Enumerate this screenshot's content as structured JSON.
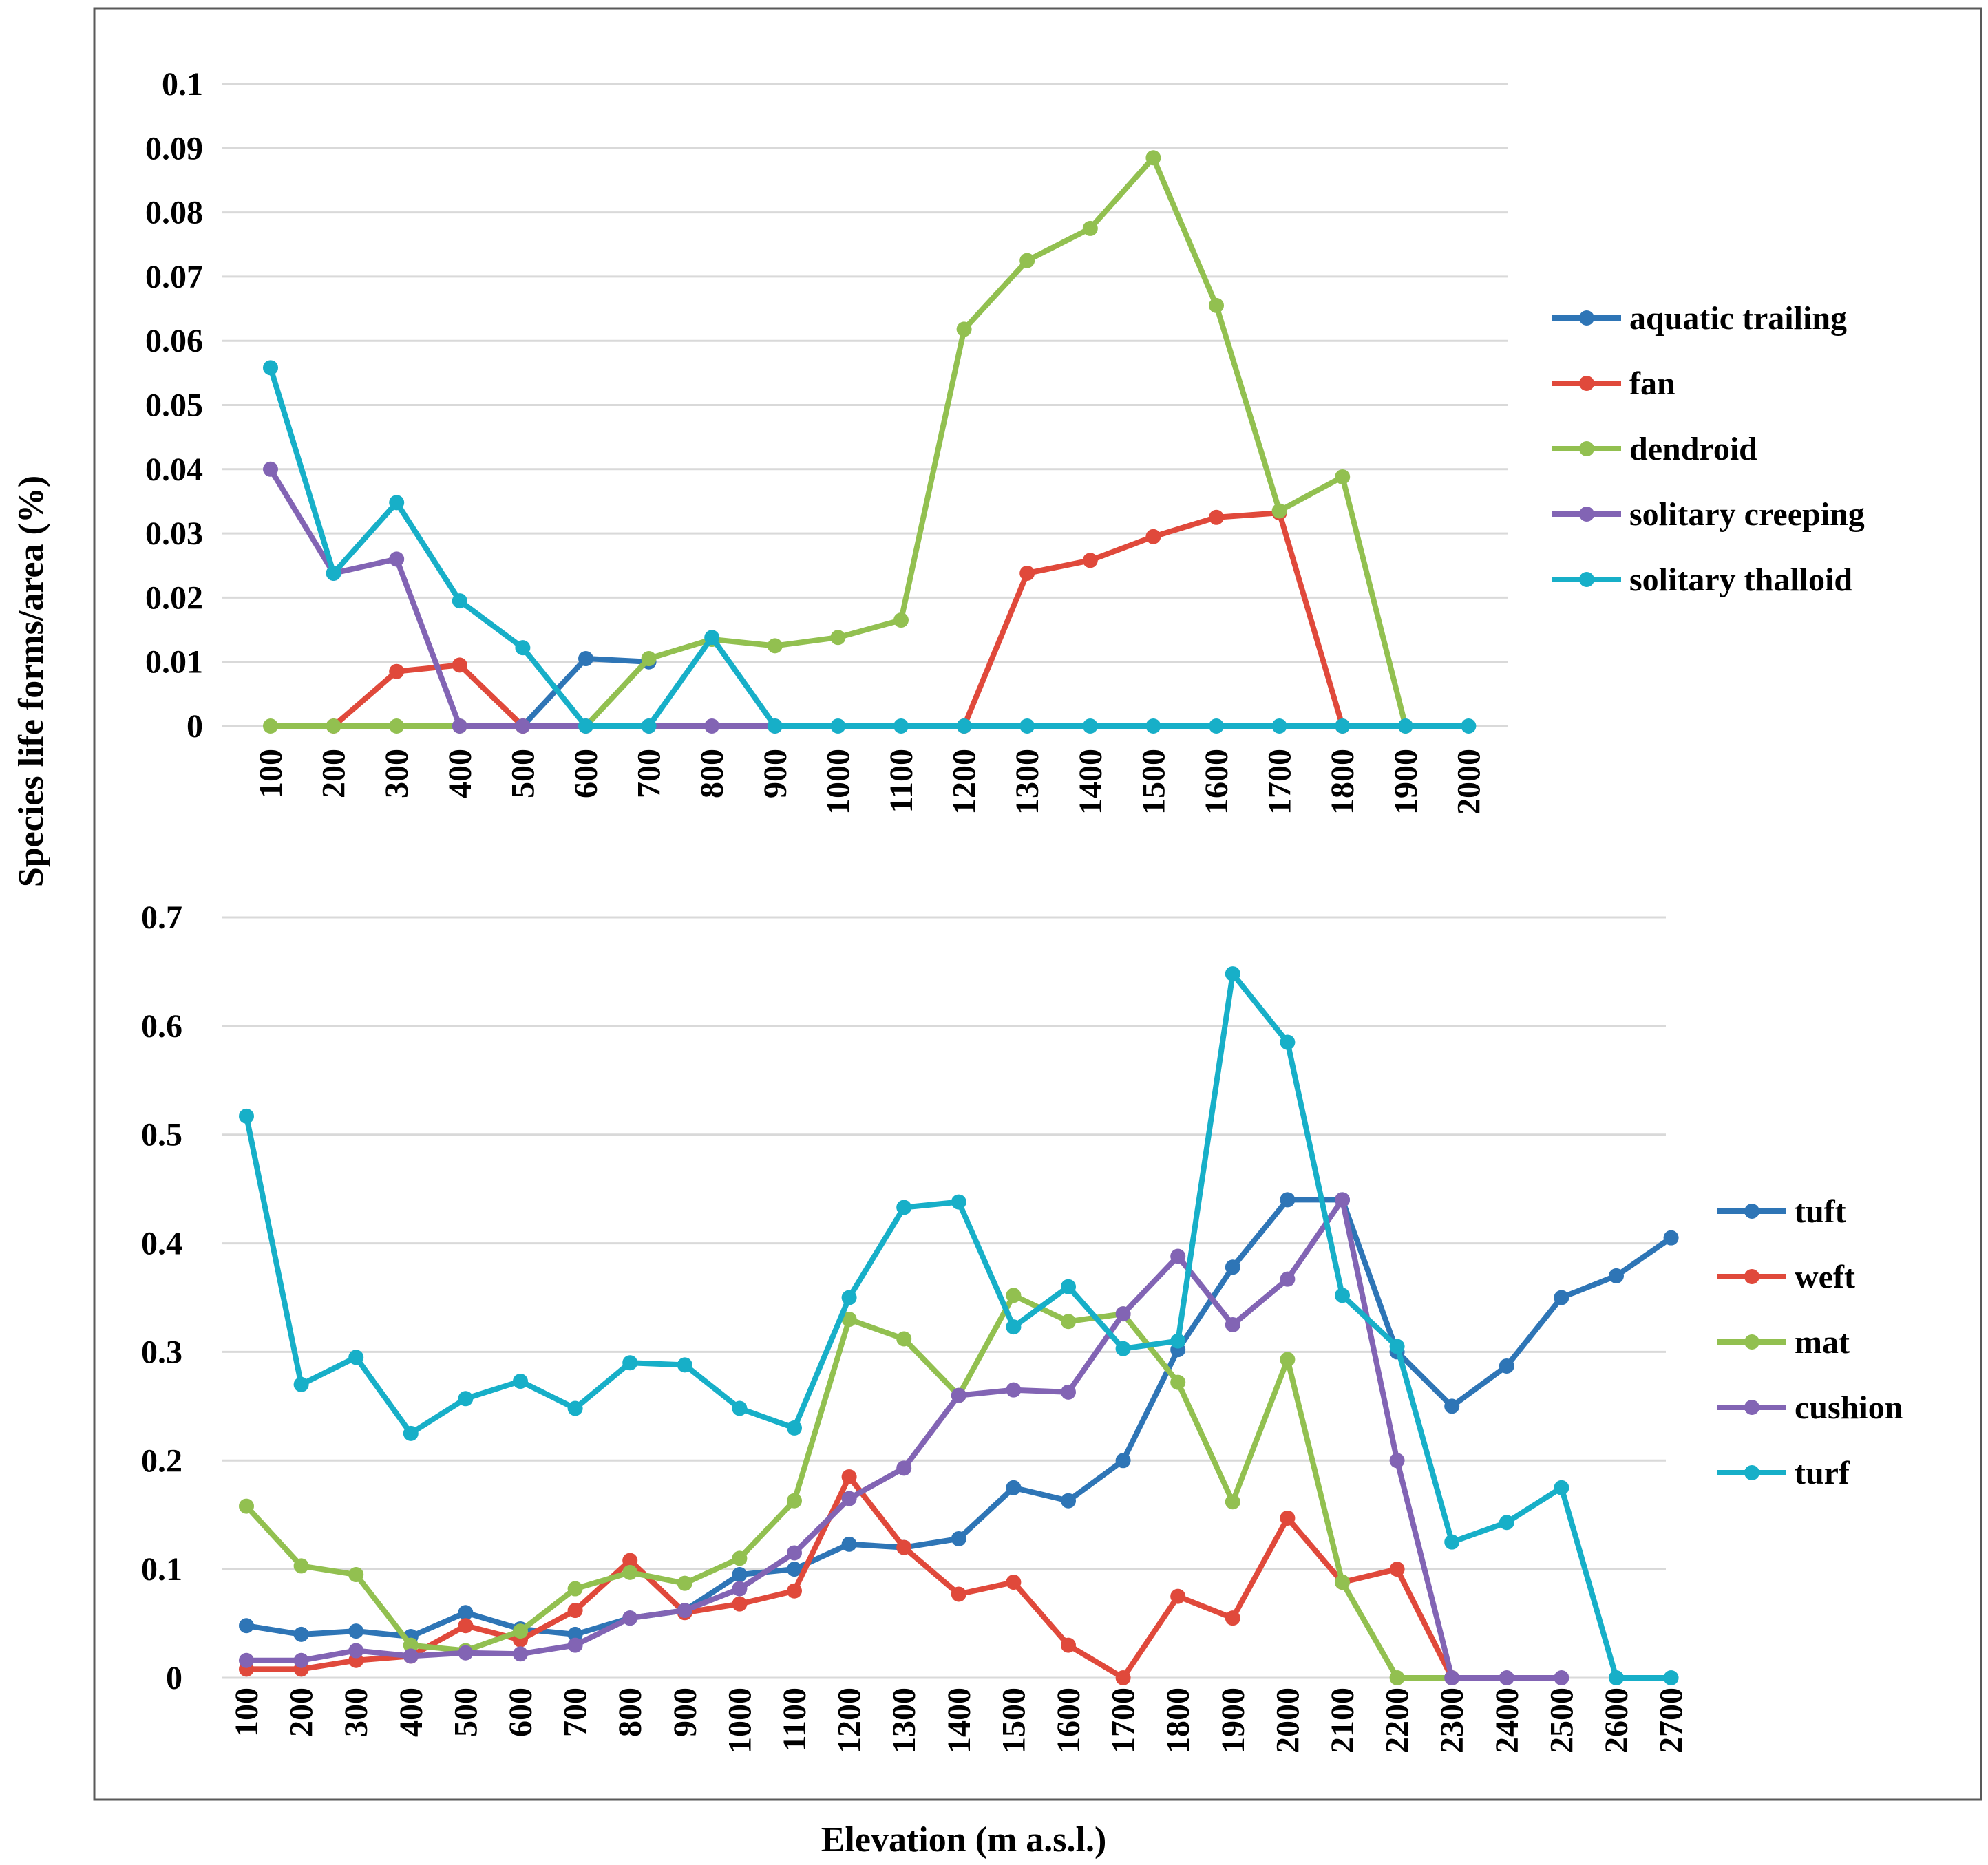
{
  "figure": {
    "ylabel": "Species life forms/area  (%)",
    "xlabel": "Elevation  (m a.s.l.)"
  },
  "chart_data": [
    {
      "type": "line",
      "categories": [
        "100",
        "200",
        "300",
        "400",
        "500",
        "600",
        "700",
        "800",
        "900",
        "1000",
        "1100",
        "1200",
        "1300",
        "1400",
        "1500",
        "1600",
        "1700",
        "1800",
        "1900",
        "2000"
      ],
      "ylim": [
        0,
        0.1
      ],
      "yticks": [
        "0",
        "0.01",
        "0.02",
        "0.03",
        "0.04",
        "0.05",
        "0.06",
        "0.07",
        "0.08",
        "0.09",
        "0.1"
      ],
      "grid": true,
      "legend_position": "right",
      "series": [
        {
          "name": "aquatic trailing",
          "color": "#2E75B6",
          "values": [
            null,
            null,
            null,
            null,
            0,
            0.0105,
            0.01,
            null,
            null,
            null,
            null,
            null,
            null,
            null,
            null,
            null,
            null,
            null,
            null,
            null
          ]
        },
        {
          "name": "fan",
          "color": "#E0493B",
          "values": [
            null,
            0,
            0.0085,
            0.0095,
            0,
            null,
            null,
            null,
            null,
            null,
            null,
            0,
            0.0238,
            0.0258,
            0.0295,
            0.0325,
            0.0332,
            0,
            null,
            null
          ]
        },
        {
          "name": "dendroid",
          "color": "#92C050",
          "values": [
            0,
            0,
            0,
            0,
            null,
            0,
            0.0105,
            0.0135,
            0.0125,
            0.0138,
            0.0165,
            0.0618,
            0.0725,
            0.0775,
            0.0885,
            0.0655,
            0.0335,
            0.0388,
            0,
            null
          ]
        },
        {
          "name": "solitary creeping",
          "color": "#8264B4",
          "values": [
            0.04,
            0.0238,
            0.026,
            0,
            0,
            0,
            0,
            0,
            0,
            null,
            null,
            null,
            null,
            null,
            null,
            null,
            null,
            null,
            null,
            null
          ]
        },
        {
          "name": "solitary thalloid",
          "color": "#17AFC8",
          "values": [
            0.0558,
            0.0238,
            0.0348,
            0.0195,
            0.0122,
            0,
            0,
            0.0138,
            0,
            0,
            0,
            0,
            0,
            0,
            0,
            0,
            0,
            0,
            0,
            0
          ]
        }
      ]
    },
    {
      "type": "line",
      "categories": [
        "100",
        "200",
        "300",
        "400",
        "500",
        "600",
        "700",
        "800",
        "900",
        "1000",
        "1100",
        "1200",
        "1300",
        "1400",
        "1500",
        "1600",
        "1700",
        "1800",
        "1900",
        "2000",
        "2100",
        "2200",
        "2300",
        "2400",
        "2500",
        "2600",
        "2700"
      ],
      "ylim": [
        0,
        0.7
      ],
      "yticks": [
        "0",
        "0.1",
        "0.2",
        "0.3",
        "0.4",
        "0.5",
        "0.6",
        "0.7"
      ],
      "grid": true,
      "legend_position": "right",
      "series": [
        {
          "name": "tuft",
          "color": "#2E75B6",
          "values": [
            0.048,
            0.04,
            0.043,
            0.038,
            0.06,
            0.045,
            0.04,
            0.055,
            0.062,
            0.095,
            0.1,
            0.123,
            0.12,
            0.128,
            0.175,
            0.163,
            0.2,
            0.302,
            0.378,
            0.44,
            0.44,
            0.3,
            0.25,
            0.287,
            0.35,
            0.37,
            0.405
          ]
        },
        {
          "name": "weft",
          "color": "#E0493B",
          "values": [
            0.008,
            0.008,
            0.016,
            0.02,
            0.048,
            0.035,
            0.062,
            0.108,
            0.06,
            0.068,
            0.08,
            0.185,
            0.12,
            0.077,
            0.088,
            0.03,
            0,
            0.075,
            0.055,
            0.147,
            0.088,
            0.1,
            0,
            null,
            null,
            null,
            null
          ]
        },
        {
          "name": "mat",
          "color": "#92C050",
          "values": [
            0.158,
            0.103,
            0.095,
            0.03,
            0.025,
            0.043,
            0.082,
            0.097,
            0.087,
            0.11,
            0.163,
            0.33,
            0.312,
            0.26,
            0.352,
            0.328,
            0.335,
            0.272,
            0.162,
            0.293,
            0.088,
            0,
            0,
            null,
            null,
            null,
            null
          ]
        },
        {
          "name": "cushion",
          "color": "#8264B4",
          "values": [
            0.016,
            0.016,
            0.025,
            0.02,
            0.023,
            0.022,
            0.03,
            0.055,
            0.062,
            0.082,
            0.115,
            0.165,
            0.193,
            0.26,
            0.265,
            0.263,
            0.335,
            0.388,
            0.325,
            0.367,
            0.44,
            0.2,
            0,
            0,
            0,
            null,
            null
          ]
        },
        {
          "name": "turf",
          "color": "#17AFC8",
          "values": [
            0.517,
            0.27,
            0.295,
            0.225,
            0.257,
            0.273,
            0.248,
            0.29,
            0.288,
            0.248,
            0.23,
            0.35,
            0.433,
            0.438,
            0.323,
            0.36,
            0.303,
            0.31,
            0.648,
            0.585,
            0.352,
            0.305,
            0.125,
            0.143,
            0.175,
            0,
            0
          ]
        }
      ]
    }
  ]
}
